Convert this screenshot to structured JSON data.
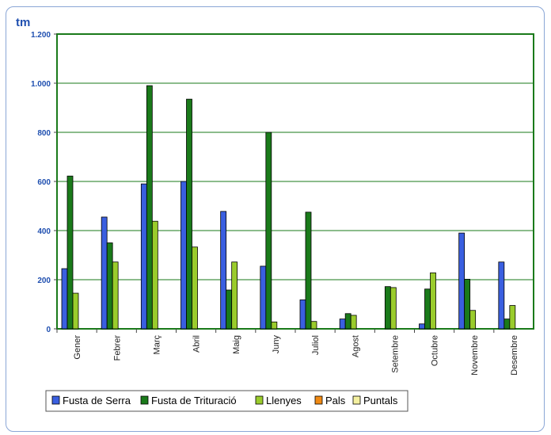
{
  "chart_data": {
    "type": "bar",
    "ylabel": "tm",
    "ylim": [
      0,
      1200
    ],
    "yticks": [
      0,
      200,
      400,
      600,
      800,
      1000,
      1200
    ],
    "ytick_labels": [
      "0",
      "200",
      "400",
      "600",
      "800",
      "1.000",
      "1.200"
    ],
    "categories": [
      "Gener",
      "Febrer",
      "Març",
      "Abril",
      "Maig",
      "Juny",
      "Juliol",
      "Agost",
      "Setembre",
      "Octubre",
      "Novembre",
      "Desembre"
    ],
    "series": [
      {
        "name": "Fusta de Serra",
        "color": "#3a5fe0",
        "values": [
          245,
          455,
          590,
          600,
          478,
          255,
          118,
          40,
          0,
          20,
          390,
          272
        ]
      },
      {
        "name": "Fusta de Trituració",
        "color": "#1a7a1a",
        "values": [
          622,
          350,
          990,
          935,
          158,
          800,
          475,
          62,
          172,
          162,
          202,
          40
        ]
      },
      {
        "name": "Llenyes",
        "color": "#9acc2c",
        "values": [
          145,
          272,
          438,
          333,
          272,
          28,
          30,
          55,
          168,
          228,
          75,
          95
        ]
      },
      {
        "name": "Pals",
        "color": "#f08a14",
        "values": [
          0,
          0,
          0,
          0,
          0,
          0,
          0,
          0,
          0,
          0,
          0,
          0
        ]
      },
      {
        "name": "Puntals",
        "color": "#f4f0a0",
        "values": [
          0,
          0,
          0,
          0,
          0,
          0,
          0,
          0,
          0,
          0,
          0,
          0
        ]
      }
    ],
    "grid": true,
    "legend": "bottom"
  }
}
